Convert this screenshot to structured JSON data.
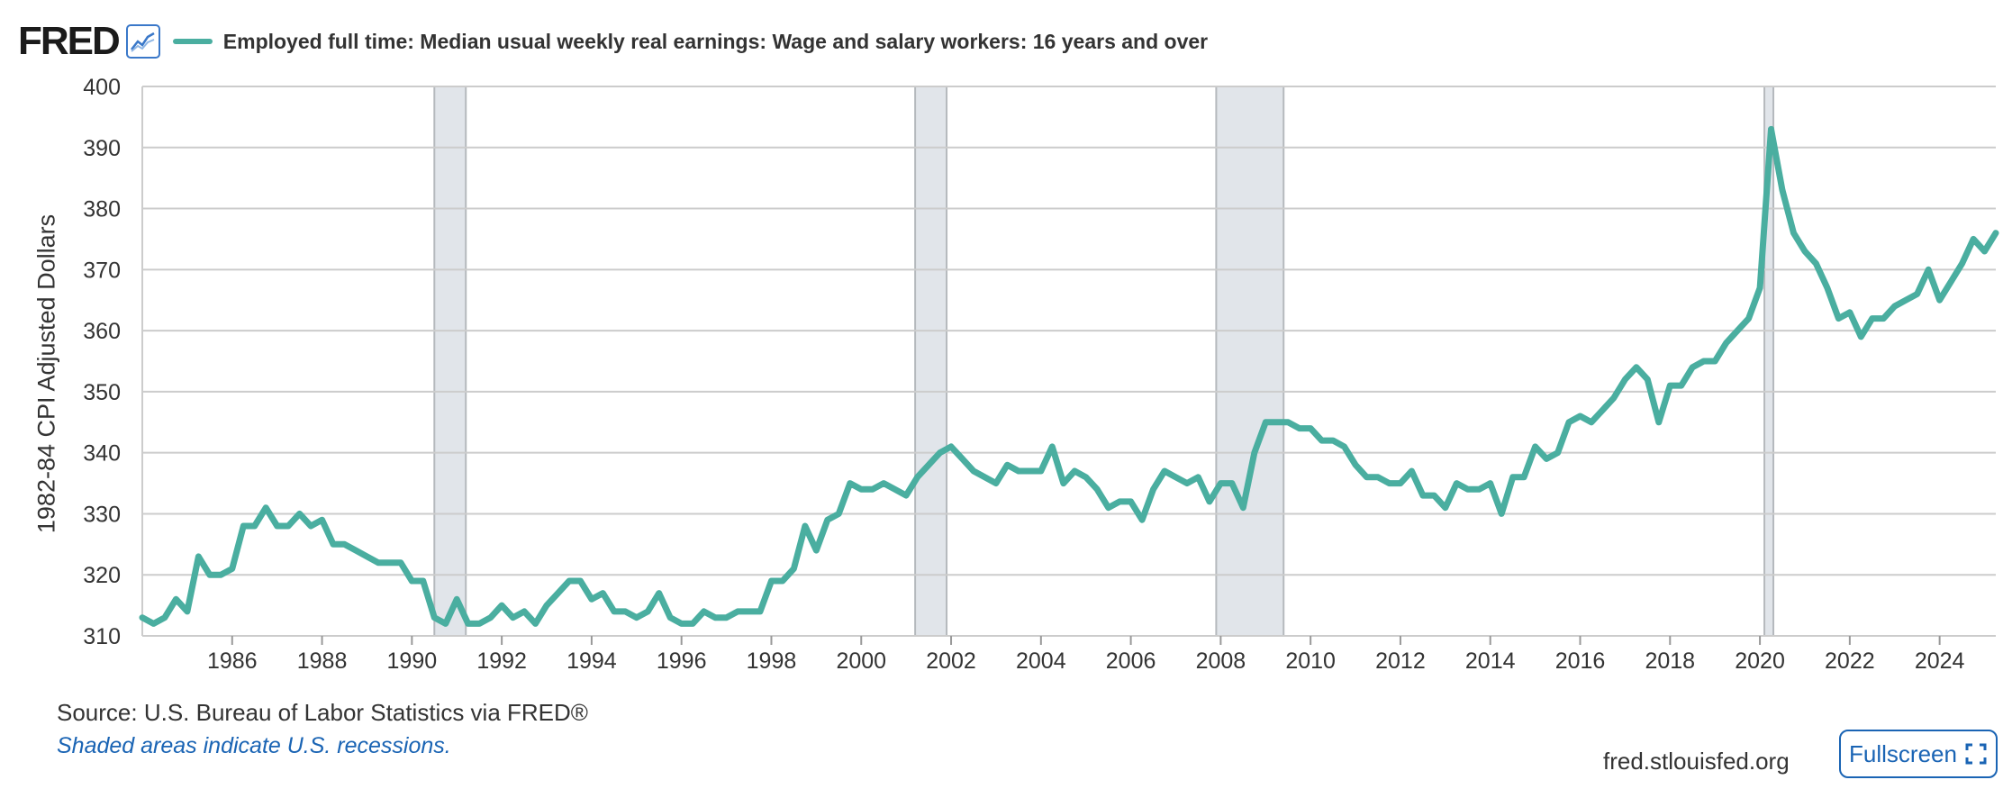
{
  "header": {
    "logo_text": "FRED",
    "series_title": "Employed full time: Median usual weekly real earnings: Wage and salary workers: 16 years and over"
  },
  "footer": {
    "source": "Source: U.S. Bureau of Labor Statistics via FRED®",
    "shaded_note": "Shaded areas indicate U.S. recessions.",
    "site": "fred.stlouisfed.org",
    "fullscreen_label": "Fullscreen"
  },
  "icons": {
    "chart_icon": "line-chart-icon",
    "fullscreen_icon": "fullscreen-icon"
  },
  "colors": {
    "series": "#4aaea0",
    "recession": "#e1e5ea",
    "grid": "#cccccc",
    "link": "#1a64b4"
  },
  "chart_data": {
    "type": "line",
    "title": "Employed full time: Median usual weekly real earnings: Wage and salary workers: 16 years and over",
    "ylabel": "1982-84 CPI Adjusted Dollars",
    "xlabel": "",
    "ylim": [
      310,
      400
    ],
    "xlim": [
      1984.0,
      2025.25
    ],
    "y_ticks": [
      310,
      320,
      330,
      340,
      350,
      360,
      370,
      380,
      390,
      400
    ],
    "x_ticks": [
      1986,
      1988,
      1990,
      1992,
      1994,
      1996,
      1998,
      2000,
      2002,
      2004,
      2006,
      2008,
      2010,
      2012,
      2014,
      2016,
      2018,
      2020,
      2022,
      2024
    ],
    "grid": true,
    "recessions": [
      [
        1990.5,
        1991.2
      ],
      [
        2001.2,
        2001.9
      ],
      [
        2007.9,
        2009.4
      ],
      [
        2020.1,
        2020.3
      ]
    ],
    "series": [
      {
        "x": [
          1984.0,
          1984.25,
          1984.5,
          1984.75,
          1985.0,
          1985.25,
          1985.5,
          1985.75,
          1986.0,
          1986.25,
          1986.5,
          1986.75,
          1987.0,
          1987.25,
          1987.5,
          1987.75,
          1988.0,
          1988.25,
          1988.5,
          1988.75,
          1989.0,
          1989.25,
          1989.5,
          1989.75,
          1990.0,
          1990.25,
          1990.5,
          1990.75,
          1991.0,
          1991.25,
          1991.5,
          1991.75,
          1992.0,
          1992.25,
          1992.5,
          1992.75,
          1993.0,
          1993.25,
          1993.5,
          1993.75,
          1994.0,
          1994.25,
          1994.5,
          1994.75,
          1995.0,
          1995.25,
          1995.5,
          1995.75,
          1996.0,
          1996.25,
          1996.5,
          1996.75,
          1997.0,
          1997.25,
          1997.5,
          1997.75,
          1998.0,
          1998.25,
          1998.5,
          1998.75,
          1999.0,
          1999.25,
          1999.5,
          1999.75,
          2000.0,
          2000.25,
          2000.5,
          2000.75,
          2001.0,
          2001.25,
          2001.5,
          2001.75,
          2002.0,
          2002.25,
          2002.5,
          2002.75,
          2003.0,
          2003.25,
          2003.5,
          2003.75,
          2004.0,
          2004.25,
          2004.5,
          2004.75,
          2005.0,
          2005.25,
          2005.5,
          2005.75,
          2006.0,
          2006.25,
          2006.5,
          2006.75,
          2007.0,
          2007.25,
          2007.5,
          2007.75,
          2008.0,
          2008.25,
          2008.5,
          2008.75,
          2009.0,
          2009.25,
          2009.5,
          2009.75,
          2010.0,
          2010.25,
          2010.5,
          2010.75,
          2011.0,
          2011.25,
          2011.5,
          2011.75,
          2012.0,
          2012.25,
          2012.5,
          2012.75,
          2013.0,
          2013.25,
          2013.5,
          2013.75,
          2014.0,
          2014.25,
          2014.5,
          2014.75,
          2015.0,
          2015.25,
          2015.5,
          2015.75,
          2016.0,
          2016.25,
          2016.5,
          2016.75,
          2017.0,
          2017.25,
          2017.5,
          2017.75,
          2018.0,
          2018.25,
          2018.5,
          2018.75,
          2019.0,
          2019.25,
          2019.5,
          2019.75,
          2020.0,
          2020.25,
          2020.5,
          2020.75,
          2021.0,
          2021.25,
          2021.5,
          2021.75,
          2022.0,
          2022.25,
          2022.5,
          2022.75,
          2023.0,
          2023.25,
          2023.5,
          2023.75,
          2024.0,
          2024.25,
          2024.5,
          2024.75,
          2025.0,
          2025.25
        ],
        "values": [
          313,
          312,
          313,
          316,
          314,
          323,
          320,
          320,
          321,
          328,
          328,
          331,
          328,
          328,
          330,
          328,
          329,
          325,
          325,
          324,
          323,
          322,
          322,
          322,
          319,
          319,
          313,
          312,
          316,
          312,
          312,
          313,
          315,
          313,
          314,
          312,
          315,
          317,
          319,
          319,
          316,
          317,
          314,
          314,
          313,
          314,
          317,
          313,
          312,
          312,
          314,
          313,
          313,
          314,
          314,
          314,
          319,
          319,
          321,
          328,
          324,
          329,
          330,
          335,
          334,
          334,
          335,
          334,
          333,
          336,
          338,
          340,
          341,
          339,
          337,
          336,
          335,
          338,
          337,
          337,
          337,
          341,
          335,
          337,
          336,
          334,
          331,
          332,
          332,
          329,
          334,
          337,
          336,
          335,
          336,
          332,
          335,
          335,
          331,
          340,
          345,
          345,
          345,
          344,
          344,
          342,
          342,
          341,
          338,
          336,
          336,
          335,
          335,
          337,
          333,
          333,
          331,
          335,
          334,
          334,
          335,
          330,
          336,
          336,
          341,
          339,
          340,
          345,
          346,
          345,
          347,
          349,
          352,
          354,
          352,
          345,
          351,
          351,
          354,
          355,
          355,
          358,
          360,
          362,
          367,
          393,
          383,
          376,
          373,
          371,
          367,
          362,
          363,
          359,
          362,
          362,
          364,
          365,
          366,
          370,
          365,
          368,
          371,
          375,
          373,
          376
        ]
      }
    ]
  }
}
